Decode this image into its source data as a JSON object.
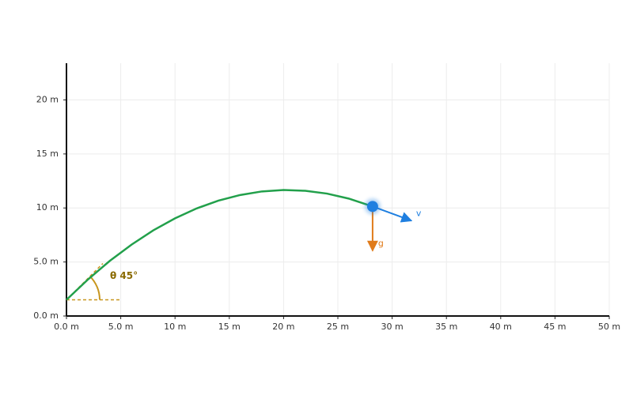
{
  "chart_data": {
    "type": "line",
    "x": [
      0,
      2,
      4,
      6,
      8,
      10,
      12,
      14,
      16,
      18,
      20,
      22,
      24,
      26,
      28.2
    ],
    "values": [
      1.5,
      3.4,
      5.11,
      6.61,
      7.93,
      9.04,
      9.96,
      10.68,
      11.2,
      11.53,
      11.66,
      11.59,
      11.33,
      10.87,
      10.14
    ],
    "color": "#22a04b",
    "marker_color": "#1f7fe0",
    "gravity_color": "#e07b1a",
    "angle_color": "#c8961e",
    "xlim": [
      0,
      50
    ],
    "ylim": [
      0,
      23.4
    ],
    "xticks": [
      {
        "value": 0,
        "label": "0.0 m"
      },
      {
        "value": 5,
        "label": "5.0 m"
      },
      {
        "value": 10,
        "label": "10 m"
      },
      {
        "value": 15,
        "label": "15 m"
      },
      {
        "value": 20,
        "label": "20 m"
      },
      {
        "value": 25,
        "label": "25 m"
      },
      {
        "value": 30,
        "label": "30 m"
      },
      {
        "value": 35,
        "label": "35 m"
      },
      {
        "value": 40,
        "label": "40 m"
      },
      {
        "value": 45,
        "label": "45 m"
      },
      {
        "value": 50,
        "label": "50 m"
      }
    ],
    "yticks": [
      {
        "value": 0,
        "label": "0.0 m"
      },
      {
        "value": 5,
        "label": "5.0 m"
      },
      {
        "value": 10,
        "label": "10 m"
      },
      {
        "value": 15,
        "label": "15 m"
      },
      {
        "value": 20,
        "label": "20 m"
      }
    ],
    "grid": true,
    "angle_label": "θ 45°",
    "velocity_label": "v",
    "gravity_label": "g"
  }
}
